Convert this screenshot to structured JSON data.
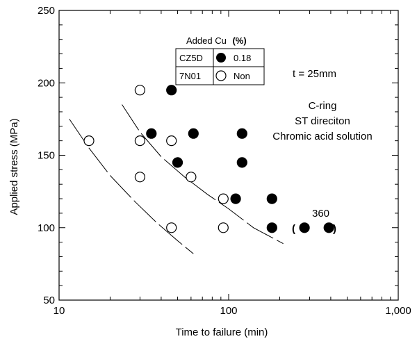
{
  "chart_data": {
    "type": "scatter",
    "xlabel": "Time to failure  (min)",
    "ylabel": "Applied stress  (MPa)",
    "xscale": "log",
    "xlim": [
      10,
      1000
    ],
    "ylim": [
      50,
      250
    ],
    "x_ticks": [
      10,
      100,
      1000
    ],
    "x_tick_labels": [
      "10",
      "100",
      "1,000"
    ],
    "y_ticks": [
      50,
      100,
      150,
      200,
      250
    ],
    "y_tick_labels": [
      "50",
      "100",
      "150",
      "200",
      "250"
    ],
    "grid": false,
    "legend": {
      "title_prefix": "Added Cu",
      "title_unit": "(%)",
      "entries": [
        {
          "alloy": "CZ5D",
          "marker": "filled-circle",
          "cu": "0.18"
        },
        {
          "alloy": "7N01",
          "marker": "open-circle",
          "cu": "Non"
        }
      ]
    },
    "series": [
      {
        "marker": "filled-circle",
        "color": "#000000",
        "x": [
          35,
          46,
          50,
          62,
          110,
          120,
          120,
          180,
          180,
          280,
          390
        ],
        "y": [
          165,
          195,
          145,
          165,
          120,
          165,
          145,
          120,
          100,
          100,
          100
        ]
      },
      {
        "marker": "open-circle",
        "color": "#000000",
        "x": [
          15,
          30,
          30,
          30,
          46,
          46,
          60,
          93,
          93
        ],
        "y": [
          160,
          195,
          160,
          135,
          160,
          100,
          135,
          120,
          100
        ]
      }
    ],
    "curves": [
      {
        "style": "dashed",
        "x": [
          11.5,
          15,
          20,
          28,
          38,
          50,
          62
        ],
        "y": [
          175,
          155,
          136,
          118,
          103,
          91,
          82
        ]
      },
      {
        "style": "dashed",
        "x": [
          23.5,
          30,
          40,
          55,
          75,
          100,
          140,
          210
        ],
        "y": [
          185,
          166,
          149,
          135,
          123,
          113,
          100,
          89
        ]
      }
    ],
    "annotations": {
      "thickness": "t = 25mm",
      "conditions": [
        "C-ring",
        "ST direciton",
        "Chromic acid solution"
      ],
      "runout_label": "360",
      "runout_bracket_open": "(",
      "runout_bracket_close": ")"
    }
  }
}
